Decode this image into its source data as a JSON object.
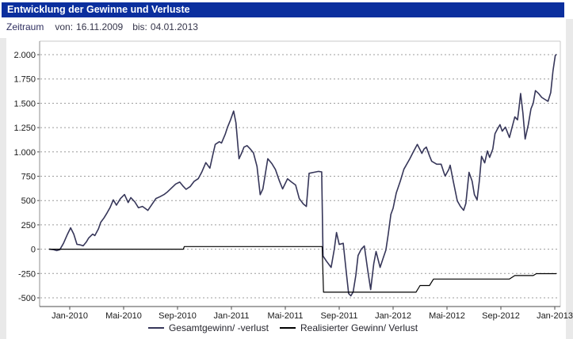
{
  "header": {
    "title": "Entwicklung der Gewinne und Verluste",
    "bg_color": "#0b2f9e",
    "text_color": "#ffffff"
  },
  "period": {
    "label": "Zeitraum",
    "from_label": "von:",
    "from_value": "16.11.2009",
    "to_label": "bis:",
    "to_value": "04.01.2013"
  },
  "chart_data": {
    "type": "line",
    "title": "",
    "xlabel": "",
    "ylabel": "",
    "ylim": [
      -500,
      2000
    ],
    "y_tick_step": 250,
    "grid": "horizontal-dashed",
    "legend_position": "bottom-center",
    "grid_color": "#9c9c9c",
    "y_ticks": [
      {
        "label": "2.000",
        "value": 2000
      },
      {
        "label": "1.750",
        "value": 1750
      },
      {
        "label": "1.500",
        "value": 1500
      },
      {
        "label": "1.250",
        "value": 1250
      },
      {
        "label": "1.000",
        "value": 1000
      },
      {
        "label": "750",
        "value": 750
      },
      {
        "label": "500",
        "value": 500
      },
      {
        "label": "250",
        "value": 250
      },
      {
        "label": "0",
        "value": 0
      },
      {
        "label": "-250",
        "value": -250
      },
      {
        "label": "-500",
        "value": -500
      }
    ],
    "x_ticks": [
      {
        "label": "Jan-2010",
        "date": "2010-01-01"
      },
      {
        "label": "Mai-2010",
        "date": "2010-05-01"
      },
      {
        "label": "Sep-2010",
        "date": "2010-09-01"
      },
      {
        "label": "Jan-2011",
        "date": "2011-01-01"
      },
      {
        "label": "Mai-2011",
        "date": "2011-05-01"
      },
      {
        "label": "Sep-2011",
        "date": "2011-09-01"
      },
      {
        "label": "Jan-2012",
        "date": "2012-01-01"
      },
      {
        "label": "Mai-2012",
        "date": "2012-05-01"
      },
      {
        "label": "Sep-2012",
        "date": "2012-09-01"
      },
      {
        "label": "Jan-2013",
        "date": "2013-01-01"
      }
    ],
    "series": [
      {
        "name": "Gesamtgewinn/ -verlust",
        "color": "#363659",
        "width": 1.6,
        "points": [
          [
            "2009-11-16",
            0
          ],
          [
            "2009-11-25",
            -5
          ],
          [
            "2009-12-02",
            -15
          ],
          [
            "2009-12-09",
            -5
          ],
          [
            "2009-12-17",
            60
          ],
          [
            "2009-12-26",
            155
          ],
          [
            "2010-01-03",
            220
          ],
          [
            "2010-01-10",
            155
          ],
          [
            "2010-01-17",
            50
          ],
          [
            "2010-01-24",
            45
          ],
          [
            "2010-02-01",
            35
          ],
          [
            "2010-02-08",
            75
          ],
          [
            "2010-02-13",
            114
          ],
          [
            "2010-02-22",
            155
          ],
          [
            "2010-02-27",
            140
          ],
          [
            "2010-03-05",
            210
          ],
          [
            "2010-03-10",
            277
          ],
          [
            "2010-03-17",
            320
          ],
          [
            "2010-03-24",
            372
          ],
          [
            "2010-04-01",
            430
          ],
          [
            "2010-04-08",
            507
          ],
          [
            "2010-04-15",
            453
          ],
          [
            "2010-04-24",
            520
          ],
          [
            "2010-05-03",
            562
          ],
          [
            "2010-05-11",
            480
          ],
          [
            "2010-05-17",
            530
          ],
          [
            "2010-05-26",
            485
          ],
          [
            "2010-06-04",
            426
          ],
          [
            "2010-06-13",
            440
          ],
          [
            "2010-06-25",
            399
          ],
          [
            "2010-07-04",
            460
          ],
          [
            "2010-07-13",
            521
          ],
          [
            "2010-07-22",
            540
          ],
          [
            "2010-08-01",
            562
          ],
          [
            "2010-08-09",
            590
          ],
          [
            "2010-08-18",
            630
          ],
          [
            "2010-08-27",
            670
          ],
          [
            "2010-09-06",
            690
          ],
          [
            "2010-09-13",
            650
          ],
          [
            "2010-09-20",
            616
          ],
          [
            "2010-09-29",
            643
          ],
          [
            "2010-10-08",
            698
          ],
          [
            "2010-10-17",
            725
          ],
          [
            "2010-10-25",
            792
          ],
          [
            "2010-11-04",
            890
          ],
          [
            "2010-11-13",
            833
          ],
          [
            "2010-11-20",
            980
          ],
          [
            "2010-11-25",
            1077
          ],
          [
            "2010-12-04",
            1105
          ],
          [
            "2010-12-09",
            1091
          ],
          [
            "2010-12-17",
            1180
          ],
          [
            "2010-12-22",
            1250
          ],
          [
            "2010-12-29",
            1330
          ],
          [
            "2011-01-06",
            1420
          ],
          [
            "2011-01-11",
            1300
          ],
          [
            "2011-01-18",
            930
          ],
          [
            "2011-01-24",
            990
          ],
          [
            "2011-01-29",
            1050
          ],
          [
            "2011-02-06",
            1064
          ],
          [
            "2011-02-13",
            1030
          ],
          [
            "2011-02-20",
            990
          ],
          [
            "2011-02-28",
            850
          ],
          [
            "2011-03-05",
            560
          ],
          [
            "2011-03-11",
            620
          ],
          [
            "2011-03-22",
            930
          ],
          [
            "2011-04-01",
            880
          ],
          [
            "2011-04-09",
            820
          ],
          [
            "2011-04-18",
            700
          ],
          [
            "2011-04-25",
            620
          ],
          [
            "2011-05-06",
            724
          ],
          [
            "2011-05-15",
            690
          ],
          [
            "2011-05-24",
            660
          ],
          [
            "2011-06-02",
            520
          ],
          [
            "2011-06-11",
            465
          ],
          [
            "2011-06-18",
            440
          ],
          [
            "2011-06-24",
            780
          ],
          [
            "2011-07-04",
            790
          ],
          [
            "2011-07-15",
            800
          ],
          [
            "2011-07-22",
            795
          ],
          [
            "2011-07-25",
            -70
          ],
          [
            "2011-08-02",
            -120
          ],
          [
            "2011-08-13",
            -187
          ],
          [
            "2011-08-20",
            0
          ],
          [
            "2011-08-25",
            171
          ],
          [
            "2011-09-01",
            49
          ],
          [
            "2011-09-10",
            60
          ],
          [
            "2011-09-17",
            -250
          ],
          [
            "2011-09-22",
            -456
          ],
          [
            "2011-09-27",
            -480
          ],
          [
            "2011-10-02",
            -440
          ],
          [
            "2011-10-08",
            -268
          ],
          [
            "2011-10-13",
            -65
          ],
          [
            "2011-10-20",
            0
          ],
          [
            "2011-10-27",
            33
          ],
          [
            "2011-11-04",
            -200
          ],
          [
            "2011-11-11",
            -415
          ],
          [
            "2011-11-18",
            -150
          ],
          [
            "2011-11-23",
            -24
          ],
          [
            "2011-12-02",
            -187
          ],
          [
            "2011-12-09",
            -90
          ],
          [
            "2011-12-15",
            -10
          ],
          [
            "2011-12-20",
            150
          ],
          [
            "2011-12-26",
            358
          ],
          [
            "2012-01-01",
            420
          ],
          [
            "2012-01-08",
            578
          ],
          [
            "2012-01-17",
            700
          ],
          [
            "2012-01-25",
            822
          ],
          [
            "2012-02-08",
            928
          ],
          [
            "2012-02-16",
            1000
          ],
          [
            "2012-02-25",
            1077
          ],
          [
            "2012-03-05",
            985
          ],
          [
            "2012-03-10",
            1030
          ],
          [
            "2012-03-15",
            1050
          ],
          [
            "2012-03-22",
            960
          ],
          [
            "2012-03-27",
            904
          ],
          [
            "2012-04-08",
            874
          ],
          [
            "2012-04-18",
            874
          ],
          [
            "2012-04-24",
            790
          ],
          [
            "2012-04-27",
            752
          ],
          [
            "2012-05-05",
            820
          ],
          [
            "2012-05-08",
            863
          ],
          [
            "2012-05-15",
            700
          ],
          [
            "2012-05-24",
            497
          ],
          [
            "2012-06-01",
            440
          ],
          [
            "2012-06-08",
            400
          ],
          [
            "2012-06-13",
            470
          ],
          [
            "2012-06-20",
            790
          ],
          [
            "2012-06-27",
            700
          ],
          [
            "2012-07-02",
            560
          ],
          [
            "2012-07-08",
            508
          ],
          [
            "2012-07-13",
            700
          ],
          [
            "2012-07-18",
            955
          ],
          [
            "2012-07-25",
            888
          ],
          [
            "2012-08-01",
            1010
          ],
          [
            "2012-08-06",
            944
          ],
          [
            "2012-08-13",
            1030
          ],
          [
            "2012-08-18",
            1188
          ],
          [
            "2012-08-24",
            1240
          ],
          [
            "2012-08-29",
            1280
          ],
          [
            "2012-09-04",
            1213
          ],
          [
            "2012-09-11",
            1255
          ],
          [
            "2012-09-20",
            1148
          ],
          [
            "2012-09-27",
            1270
          ],
          [
            "2012-10-02",
            1360
          ],
          [
            "2012-10-08",
            1330
          ],
          [
            "2012-10-11",
            1440
          ],
          [
            "2012-10-15",
            1600
          ],
          [
            "2012-10-20",
            1400
          ],
          [
            "2012-10-25",
            1132
          ],
          [
            "2012-11-02",
            1280
          ],
          [
            "2012-11-08",
            1444
          ],
          [
            "2012-11-13",
            1500
          ],
          [
            "2012-11-18",
            1630
          ],
          [
            "2012-11-25",
            1600
          ],
          [
            "2012-12-02",
            1560
          ],
          [
            "2012-12-09",
            1540
          ],
          [
            "2012-12-16",
            1520
          ],
          [
            "2012-12-22",
            1610
          ],
          [
            "2012-12-27",
            1830
          ],
          [
            "2013-01-02",
            1990
          ],
          [
            "2013-01-04",
            2000
          ]
        ]
      },
      {
        "name": "Realisierter Gewinn/ Verlust",
        "color": "#000000",
        "width": 1.2,
        "points": [
          [
            "2009-11-16",
            0
          ],
          [
            "2010-09-14",
            0
          ],
          [
            "2010-09-16",
            27
          ],
          [
            "2011-07-23",
            27
          ],
          [
            "2011-07-26",
            -442
          ],
          [
            "2012-02-22",
            -442
          ],
          [
            "2012-03-01",
            -374
          ],
          [
            "2012-03-22",
            -374
          ],
          [
            "2012-04-01",
            -307
          ],
          [
            "2012-09-20",
            -307
          ],
          [
            "2012-10-02",
            -271
          ],
          [
            "2012-11-13",
            -271
          ],
          [
            "2012-11-20",
            -252
          ],
          [
            "2013-01-04",
            -252
          ]
        ]
      }
    ]
  }
}
